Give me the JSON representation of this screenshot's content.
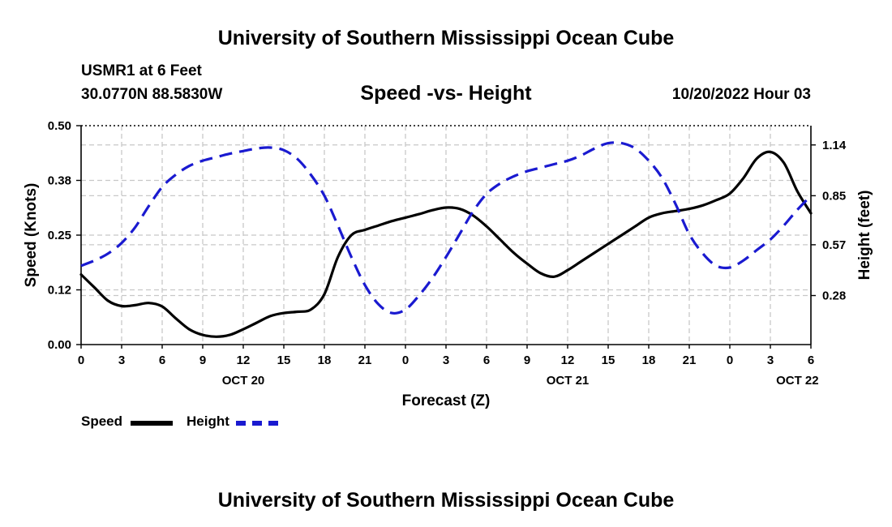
{
  "header": {
    "title_top": "University of Southern Mississippi Ocean Cube",
    "title_bottom": "University of Southern Mississippi Ocean Cube",
    "station": "USMR1 at 6 Feet",
    "coords": "30.0770N  88.5830W",
    "datetime": "10/20/2022 Hour 03"
  },
  "colors": {
    "speed": "#000000",
    "height": "#1a1ad0",
    "grid": "#c8c8c8"
  },
  "chart_data": {
    "type": "line",
    "title": "Speed -vs- Height",
    "xlabel": "Forecast (Z)",
    "ylabel_left": "Speed (Knots)",
    "ylabel_right": "Height (feet)",
    "x_range": [
      0,
      54
    ],
    "x_tick_values": [
      0,
      3,
      6,
      9,
      12,
      15,
      18,
      21,
      24,
      27,
      30,
      33,
      36,
      39,
      42,
      45,
      48,
      51,
      54
    ],
    "x_tick_labels": [
      "0",
      "3",
      "6",
      "9",
      "12",
      "15",
      "18",
      "21",
      "0",
      "3",
      "6",
      "9",
      "12",
      "15",
      "18",
      "21",
      "0",
      "3",
      "6"
    ],
    "date_labels": [
      {
        "x": 12,
        "label": "OCT 20"
      },
      {
        "x": 36,
        "label": "OCT 21"
      },
      {
        "x": 53,
        "label": "OCT 22"
      }
    ],
    "left_axis": {
      "range": [
        0,
        0.5
      ],
      "ticks": [
        0.0,
        0.125,
        0.25,
        0.375,
        0.5
      ],
      "tick_labels": [
        "0.00",
        "0.12",
        "0.25",
        "0.38",
        "0.50"
      ]
    },
    "right_axis": {
      "range": [
        0.0,
        1.25
      ],
      "ticks": [
        0.28,
        0.57,
        0.85,
        1.14
      ],
      "tick_labels": [
        "0.28",
        "0.57",
        "0.85",
        "1.14"
      ]
    },
    "series": [
      {
        "name": "Speed",
        "axis": "left",
        "style": "solid",
        "x": [
          0,
          1,
          2,
          3,
          4,
          5,
          6,
          7,
          8,
          9,
          10,
          11,
          12,
          13,
          14,
          15,
          16,
          17,
          18,
          19,
          20,
          21,
          22,
          23,
          24,
          25,
          26,
          27,
          28,
          29,
          30,
          31,
          32,
          33,
          34,
          35,
          36,
          37,
          38,
          39,
          40,
          41,
          42,
          43,
          44,
          45,
          46,
          47,
          48,
          49,
          50,
          51,
          52,
          53,
          54
        ],
        "y": [
          0.16,
          0.13,
          0.1,
          0.088,
          0.09,
          0.095,
          0.087,
          0.06,
          0.035,
          0.022,
          0.018,
          0.022,
          0.035,
          0.05,
          0.065,
          0.072,
          0.075,
          0.08,
          0.115,
          0.2,
          0.25,
          0.262,
          0.272,
          0.282,
          0.29,
          0.298,
          0.307,
          0.313,
          0.31,
          0.295,
          0.27,
          0.24,
          0.21,
          0.185,
          0.163,
          0.155,
          0.17,
          0.19,
          0.21,
          0.23,
          0.25,
          0.27,
          0.29,
          0.3,
          0.305,
          0.31,
          0.318,
          0.33,
          0.345,
          0.38,
          0.425,
          0.44,
          0.415,
          0.35,
          0.3
        ]
      },
      {
        "name": "Height",
        "axis": "right",
        "style": "dashed",
        "x": [
          0,
          1,
          2,
          3,
          4,
          5,
          6,
          7,
          8,
          9,
          10,
          11,
          12,
          13,
          14,
          15,
          16,
          17,
          18,
          19,
          20,
          21,
          22,
          23,
          24,
          25,
          26,
          27,
          28,
          29,
          30,
          31,
          32,
          33,
          34,
          35,
          36,
          37,
          38,
          39,
          40,
          41,
          42,
          43,
          44,
          45,
          46,
          47,
          48,
          49,
          50,
          51,
          52,
          53,
          54
        ],
        "y": [
          0.45,
          0.48,
          0.52,
          0.58,
          0.67,
          0.79,
          0.9,
          0.97,
          1.02,
          1.05,
          1.07,
          1.09,
          1.105,
          1.12,
          1.125,
          1.11,
          1.06,
          0.97,
          0.85,
          0.68,
          0.5,
          0.34,
          0.23,
          0.18,
          0.2,
          0.28,
          0.38,
          0.5,
          0.63,
          0.76,
          0.86,
          0.92,
          0.96,
          0.99,
          1.01,
          1.03,
          1.05,
          1.08,
          1.12,
          1.15,
          1.15,
          1.12,
          1.05,
          0.95,
          0.8,
          0.63,
          0.52,
          0.45,
          0.44,
          0.48,
          0.54,
          0.6,
          0.68,
          0.77,
          0.85
        ]
      }
    ],
    "legend": [
      {
        "label": "Speed",
        "series": "Speed"
      },
      {
        "label": "Height",
        "series": "Height"
      }
    ]
  }
}
